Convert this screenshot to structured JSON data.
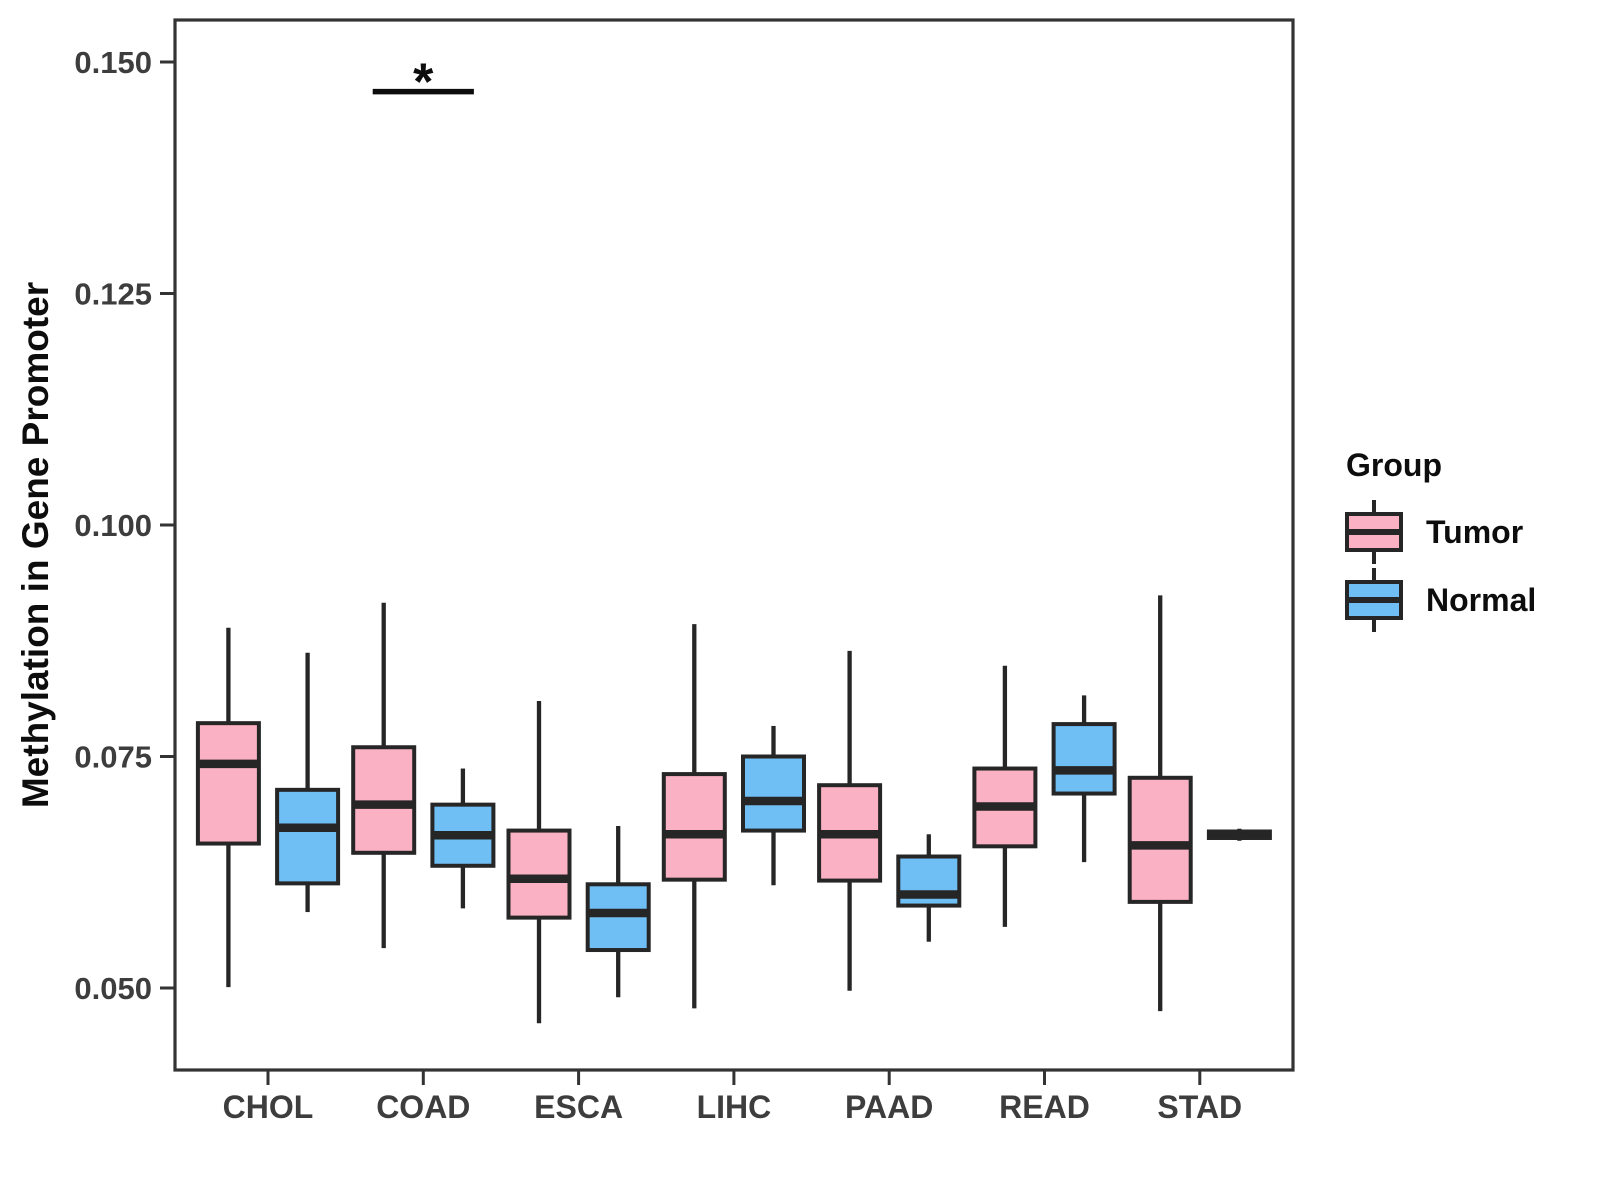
{
  "legend": {
    "title": "Group",
    "items": [
      {
        "label": "Tumor",
        "color": "#FAB1C3"
      },
      {
        "label": "Normal",
        "color": "#6FBEF4"
      }
    ]
  },
  "chart_data": {
    "type": "boxplot",
    "title": "",
    "xlabel": "",
    "ylabel": "Methylation in Gene Promoter",
    "grid": false,
    "legend_position": "right",
    "categories": [
      "CHOL",
      "COAD",
      "ESCA",
      "LIHC",
      "PAAD",
      "READ",
      "STAD"
    ],
    "y_ticks": [
      0.05,
      0.075,
      0.1,
      0.125,
      0.15
    ],
    "y_tick_labels": [
      "0.050",
      "0.075",
      "0.100",
      "0.125",
      "0.150"
    ],
    "ylim": [
      0.041,
      0.155
    ],
    "series": [
      {
        "name": "Tumor",
        "color": "#FAB1C3",
        "boxes": [
          {
            "low": 0.0501,
            "q1": 0.0656,
            "median": 0.0742,
            "q3": 0.0786,
            "high": 0.0889
          },
          {
            "low": 0.0543,
            "q1": 0.0646,
            "median": 0.0698,
            "q3": 0.076,
            "high": 0.0916
          },
          {
            "low": 0.0462,
            "q1": 0.0576,
            "median": 0.0618,
            "q3": 0.067,
            "high": 0.081
          },
          {
            "low": 0.0478,
            "q1": 0.0617,
            "median": 0.0666,
            "q3": 0.0731,
            "high": 0.0893
          },
          {
            "low": 0.0497,
            "q1": 0.0616,
            "median": 0.0666,
            "q3": 0.0719,
            "high": 0.0864
          },
          {
            "low": 0.0566,
            "q1": 0.0653,
            "median": 0.0696,
            "q3": 0.0737,
            "high": 0.0848
          },
          {
            "low": 0.0475,
            "q1": 0.0593,
            "median": 0.0654,
            "q3": 0.0727,
            "high": 0.0924
          }
        ]
      },
      {
        "name": "Normal",
        "color": "#6FBEF4",
        "boxes": [
          {
            "low": 0.0582,
            "q1": 0.0613,
            "median": 0.0673,
            "q3": 0.0714,
            "high": 0.0862
          },
          {
            "low": 0.0586,
            "q1": 0.0632,
            "median": 0.0665,
            "q3": 0.0698,
            "high": 0.0737
          },
          {
            "low": 0.049,
            "q1": 0.0541,
            "median": 0.0581,
            "q3": 0.0612,
            "high": 0.0675
          },
          {
            "low": 0.0611,
            "q1": 0.067,
            "median": 0.0702,
            "q3": 0.075,
            "high": 0.0783
          },
          {
            "low": 0.055,
            "q1": 0.0589,
            "median": 0.0601,
            "q3": 0.0642,
            "high": 0.0666
          },
          {
            "low": 0.0636,
            "q1": 0.071,
            "median": 0.0735,
            "q3": 0.0785,
            "high": 0.0816
          },
          {
            "low": 0.0659,
            "q1": 0.0662,
            "median": 0.0665,
            "q3": 0.0669,
            "high": 0.0672
          }
        ]
      }
    ],
    "significance": {
      "category": "COAD",
      "label": "*",
      "line_value": 0.1468
    }
  },
  "style": {
    "box_stroke": "#262626",
    "panel_border": "#333333",
    "tick_color": "#333333",
    "tick_label_color": "#3d3d3d",
    "annotation_color": "#0d0d0d"
  }
}
